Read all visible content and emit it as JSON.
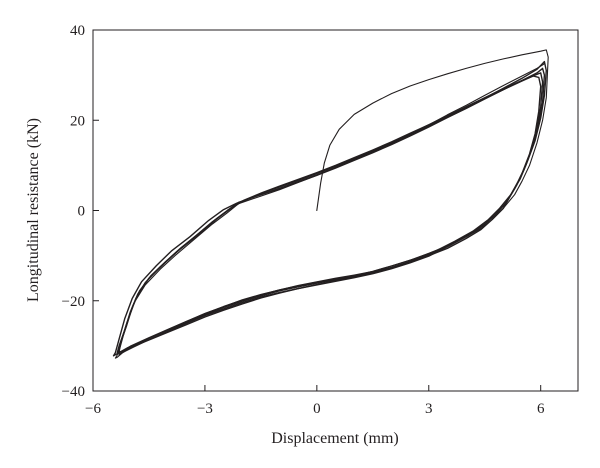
{
  "chart_data": {
    "type": "line",
    "title": "",
    "xlabel": "Displacement (mm)",
    "ylabel": "Longitudinal resistance (kN)",
    "xlim": [
      -6,
      7
    ],
    "ylim": [
      -40,
      40
    ],
    "xticks": [
      -6,
      -3,
      0,
      3,
      6
    ],
    "yticks": [
      -40,
      -20,
      0,
      20,
      40
    ],
    "xtick_labels": [
      "−6",
      "−3",
      "0",
      "3",
      "6"
    ],
    "ytick_labels": [
      "−40",
      "−20",
      "0",
      "20",
      "40"
    ],
    "grid": false,
    "legend": "none",
    "line_color": "#231f20",
    "series": [
      {
        "x": [
          0.0,
          0.1,
          0.2,
          0.35,
          0.6,
          1.0,
          1.5,
          2.0,
          2.5,
          3.0,
          3.5,
          4.0,
          4.5,
          5.0,
          5.5,
          6.0,
          6.15,
          6.2,
          6.15,
          6.05,
          5.9,
          5.7,
          5.5,
          5.3,
          5.0,
          4.7,
          4.4,
          4.0,
          3.5,
          3.0,
          2.5,
          2.0,
          1.5,
          1.0,
          0.5,
          0.0,
          -0.5,
          -1.0,
          -1.5,
          -2.0,
          -2.5,
          -3.0,
          -3.5,
          -4.0,
          -4.5,
          -4.9,
          -5.2,
          -5.35,
          -5.4,
          -5.35,
          -5.25,
          -5.1,
          -4.9,
          -4.6,
          -4.2,
          -3.8,
          -3.3,
          -2.8,
          -2.4,
          -2.1,
          -1.5,
          -1.0,
          -0.5,
          0.0,
          0.5,
          1.0,
          1.5,
          2.0,
          2.5,
          3.0,
          3.5,
          4.0,
          4.5,
          5.0,
          5.5,
          5.9,
          6.1
        ],
        "y": [
          0.0,
          6.0,
          10.5,
          14.5,
          18.0,
          21.3,
          23.8,
          25.9,
          27.6,
          29.0,
          30.3,
          31.5,
          32.6,
          33.6,
          34.5,
          35.3,
          35.6,
          34.0,
          25.0,
          20.0,
          15.0,
          10.0,
          6.5,
          3.5,
          0.5,
          -2.0,
          -4.0,
          -5.8,
          -7.8,
          -9.5,
          -11.0,
          -12.3,
          -13.5,
          -14.3,
          -15.0,
          -15.8,
          -16.6,
          -17.6,
          -18.6,
          -19.8,
          -21.3,
          -22.8,
          -24.6,
          -26.4,
          -28.3,
          -30.0,
          -31.5,
          -32.5,
          -32.7,
          -32.0,
          -29.0,
          -25.0,
          -20.5,
          -16.5,
          -13.0,
          -10.0,
          -6.5,
          -3.0,
          -0.5,
          1.5,
          3.2,
          4.6,
          6.2,
          7.8,
          9.5,
          11.3,
          13.0,
          15.0,
          17.0,
          19.0,
          21.2,
          23.3,
          25.5,
          27.7,
          29.8,
          31.5,
          32.5
        ]
      },
      {
        "x": [
          6.05,
          6.1,
          6.05,
          5.95,
          5.8,
          5.6,
          5.4,
          5.2,
          5.0,
          4.7,
          4.4,
          4.0,
          3.5,
          3.0,
          2.5,
          2.0,
          1.5,
          1.0,
          0.5,
          0.0,
          -0.5,
          -1.0,
          -1.5,
          -2.0,
          -2.5,
          -3.0,
          -3.5,
          -4.0,
          -4.5,
          -4.9,
          -5.2,
          -5.3,
          -5.3,
          -5.2,
          -5.05,
          -4.85,
          -4.6,
          -4.2,
          -3.8,
          -3.3,
          -2.8,
          -2.4,
          -2.1,
          -1.5,
          -1.0,
          -0.5,
          0.0,
          0.5,
          1.0,
          1.5,
          2.0,
          2.5,
          3.0,
          3.5,
          4.0,
          4.5,
          5.0,
          5.5,
          5.9,
          6.05
        ],
        "y": [
          31.5,
          30.0,
          24.0,
          19.0,
          14.5,
          10.0,
          6.5,
          3.5,
          0.5,
          -2.0,
          -4.2,
          -6.2,
          -8.4,
          -10.0,
          -11.5,
          -12.8,
          -13.9,
          -14.8,
          -15.6,
          -16.4,
          -17.3,
          -18.3,
          -19.4,
          -20.7,
          -22.1,
          -23.6,
          -25.3,
          -27.0,
          -28.7,
          -30.0,
          -31.2,
          -32.0,
          -31.0,
          -28.0,
          -24.0,
          -19.5,
          -16.0,
          -12.5,
          -9.5,
          -6.0,
          -2.5,
          0.0,
          1.8,
          3.5,
          4.9,
          6.4,
          7.9,
          9.5,
          11.2,
          12.9,
          14.8,
          16.7,
          18.6,
          20.6,
          22.6,
          24.7,
          26.8,
          28.8,
          30.5,
          31.5
        ]
      },
      {
        "x": [
          6.0,
          6.05,
          6.0,
          5.9,
          5.75,
          5.55,
          5.35,
          5.1,
          4.8,
          4.5,
          4.1,
          3.6,
          3.0,
          2.5,
          2.0,
          1.5,
          1.0,
          0.5,
          0.0,
          -0.5,
          -1.0,
          -1.5,
          -2.0,
          -2.5,
          -3.0,
          -3.5,
          -4.0,
          -4.5,
          -4.95,
          -5.25,
          -5.35,
          -5.3,
          -5.15,
          -5.0,
          -4.8,
          -4.5,
          -4.1,
          -3.7,
          -3.2,
          -2.7,
          -2.3,
          -2.0,
          -1.5,
          -1.0,
          -0.5,
          0.0,
          0.5,
          1.0,
          1.5,
          2.0,
          2.5,
          3.0,
          3.5,
          4.0,
          4.5,
          5.0,
          5.5,
          5.85,
          6.0
        ],
        "y": [
          30.5,
          28.5,
          23.0,
          18.0,
          13.5,
          9.0,
          5.5,
          2.0,
          -0.8,
          -3.0,
          -5.2,
          -7.4,
          -9.8,
          -11.3,
          -12.6,
          -13.7,
          -14.6,
          -15.4,
          -16.1,
          -16.9,
          -17.8,
          -18.9,
          -20.1,
          -21.5,
          -23.1,
          -24.8,
          -26.5,
          -28.3,
          -30.0,
          -31.3,
          -31.5,
          -30.0,
          -26.5,
          -22.5,
          -18.5,
          -15.0,
          -11.8,
          -8.8,
          -5.5,
          -2.0,
          0.5,
          2.0,
          3.8,
          5.2,
          6.7,
          8.2,
          9.8,
          11.5,
          13.2,
          15.0,
          16.9,
          18.8,
          20.8,
          22.8,
          24.8,
          26.8,
          28.7,
          30.0,
          30.5
        ]
      },
      {
        "x": [
          6.1,
          6.15,
          6.1,
          6.0,
          5.85,
          5.65,
          5.45,
          5.2,
          4.9,
          4.6,
          4.2,
          3.7,
          3.2,
          2.6,
          2.0,
          1.5,
          1.0,
          0.5,
          0.0,
          -0.5,
          -1.0,
          -1.5,
          -2.0,
          -2.5,
          -3.0,
          -3.5,
          -4.0,
          -4.5,
          -5.0,
          -5.3,
          -5.45,
          -5.4,
          -5.3,
          -5.15,
          -4.95,
          -4.7,
          -4.3,
          -3.9,
          -3.4,
          -2.9,
          -2.5,
          -2.15,
          -1.6,
          -1.0,
          -0.5,
          0.0,
          0.5,
          1.0,
          1.5,
          2.0,
          2.5,
          3.0,
          3.5,
          4.0,
          4.5,
          5.0,
          5.5,
          5.9,
          6.1
        ],
        "y": [
          33.0,
          31.0,
          25.5,
          20.5,
          15.5,
          11.0,
          7.0,
          3.5,
          0.5,
          -2.0,
          -4.5,
          -6.8,
          -8.9,
          -10.8,
          -12.3,
          -13.5,
          -14.5,
          -15.2,
          -15.9,
          -16.7,
          -17.6,
          -18.7,
          -19.9,
          -21.3,
          -22.9,
          -24.6,
          -26.4,
          -28.2,
          -30.1,
          -31.5,
          -32.2,
          -31.5,
          -28.5,
          -24.0,
          -19.5,
          -15.8,
          -12.2,
          -9.0,
          -5.8,
          -2.2,
          0.2,
          1.6,
          3.3,
          4.8,
          6.3,
          7.8,
          9.4,
          11.1,
          12.8,
          14.6,
          16.5,
          18.5,
          20.6,
          22.7,
          24.9,
          27.1,
          29.3,
          31.3,
          33.0
        ]
      },
      {
        "x": [
          5.95,
          6.0,
          5.95,
          5.85,
          5.7,
          5.5,
          5.3,
          5.05,
          4.75,
          4.45,
          4.05,
          3.55,
          3.0,
          2.5,
          2.0,
          1.5,
          1.0,
          0.5,
          0.0,
          -0.5,
          -1.0,
          -1.5,
          -2.0,
          -2.5,
          -3.0,
          -3.5,
          -4.0,
          -4.5,
          -4.9,
          -5.2,
          -5.3,
          -5.25,
          -5.1,
          -4.95,
          -4.75,
          -4.45,
          -4.05,
          -3.65,
          -3.15,
          -2.65,
          -2.25,
          -1.95,
          -1.45,
          -1.0,
          -0.5,
          0.0,
          0.5,
          1.0,
          1.5,
          2.0,
          2.5,
          3.0,
          3.5,
          4.0,
          4.5,
          5.0,
          5.5,
          5.8,
          5.95
        ],
        "y": [
          29.5,
          27.5,
          22.0,
          17.0,
          12.5,
          8.2,
          4.8,
          1.5,
          -1.2,
          -3.4,
          -5.6,
          -7.8,
          -10.1,
          -11.6,
          -12.9,
          -14.0,
          -14.9,
          -15.7,
          -16.5,
          -17.3,
          -18.2,
          -19.2,
          -20.4,
          -21.8,
          -23.3,
          -25.0,
          -26.8,
          -28.6,
          -30.2,
          -31.4,
          -31.2,
          -29.0,
          -25.5,
          -21.5,
          -17.8,
          -14.5,
          -11.3,
          -8.3,
          -5.0,
          -1.6,
          0.8,
          2.3,
          4.0,
          5.4,
          6.9,
          8.4,
          10.0,
          11.7,
          13.4,
          15.2,
          17.1,
          19.0,
          21.0,
          23.0,
          25.0,
          27.0,
          28.8,
          29.8,
          29.5
        ]
      }
    ]
  }
}
